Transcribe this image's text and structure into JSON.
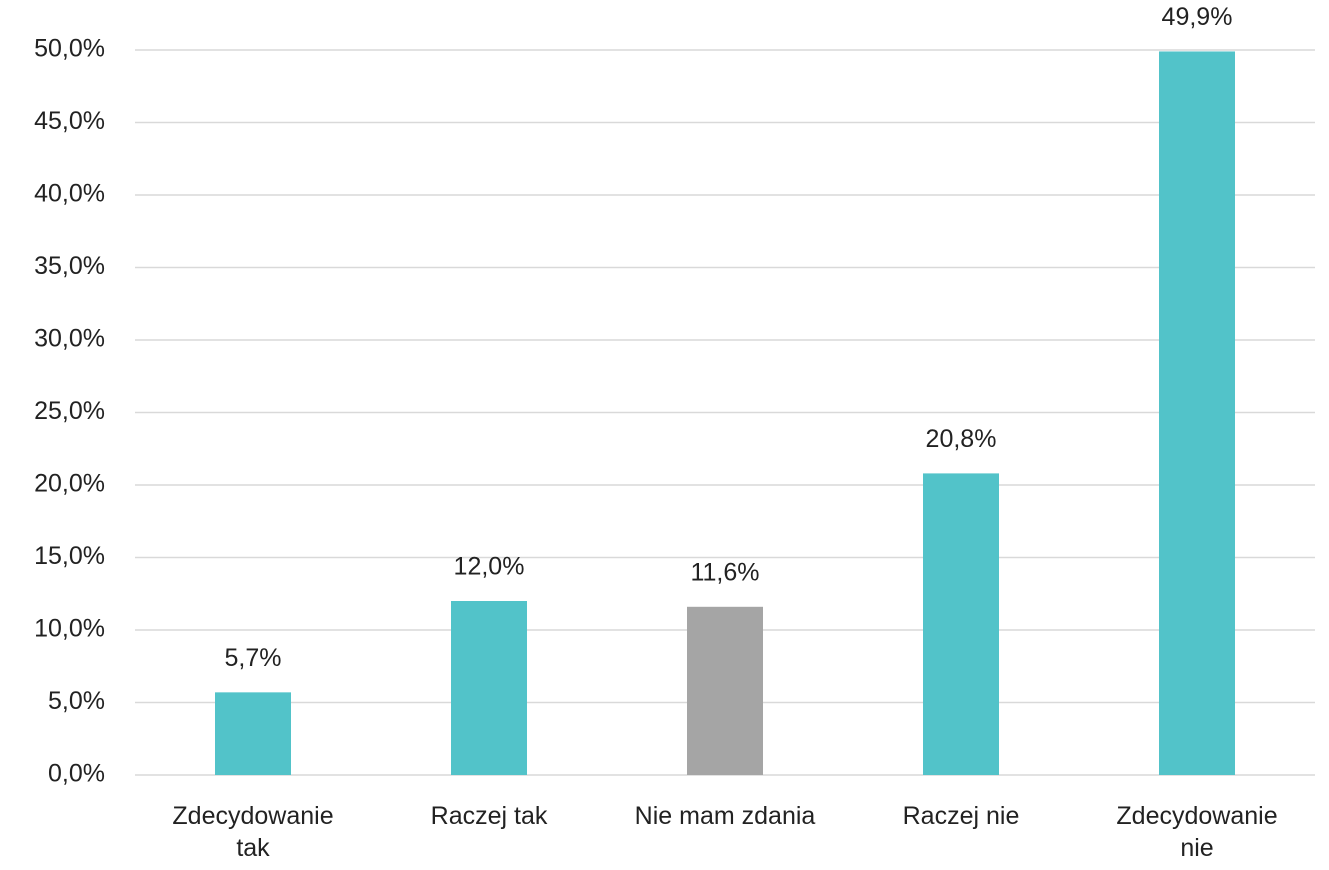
{
  "chart_data": {
    "type": "bar",
    "categories": [
      "Zdecydowanie tak",
      "Raczej tak",
      "Nie mam zdania",
      "Raczej nie",
      "Zdecydowanie nie"
    ],
    "values": [
      5.7,
      12.0,
      11.6,
      20.8,
      49.9
    ],
    "value_labels": [
      "5,7%",
      "12,0%",
      "11,6%",
      "20,8%",
      "49,9%"
    ],
    "colors": [
      "#52c3c9",
      "#52c3c9",
      "#a5a5a5",
      "#52c3c9",
      "#52c3c9"
    ],
    "ylim": [
      0,
      50
    ],
    "yticks": [
      {
        "value": 0,
        "label": "0,0%"
      },
      {
        "value": 5,
        "label": "5,0%"
      },
      {
        "value": 10,
        "label": "10,0%"
      },
      {
        "value": 15,
        "label": "15,0%"
      },
      {
        "value": 20,
        "label": "20,0%"
      },
      {
        "value": 25,
        "label": "25,0%"
      },
      {
        "value": 30,
        "label": "30,0%"
      },
      {
        "value": 35,
        "label": "35,0%"
      },
      {
        "value": 40,
        "label": "40,0%"
      },
      {
        "value": 45,
        "label": "45,0%"
      },
      {
        "value": 50,
        "label": "50,0%"
      }
    ],
    "grid": true
  }
}
